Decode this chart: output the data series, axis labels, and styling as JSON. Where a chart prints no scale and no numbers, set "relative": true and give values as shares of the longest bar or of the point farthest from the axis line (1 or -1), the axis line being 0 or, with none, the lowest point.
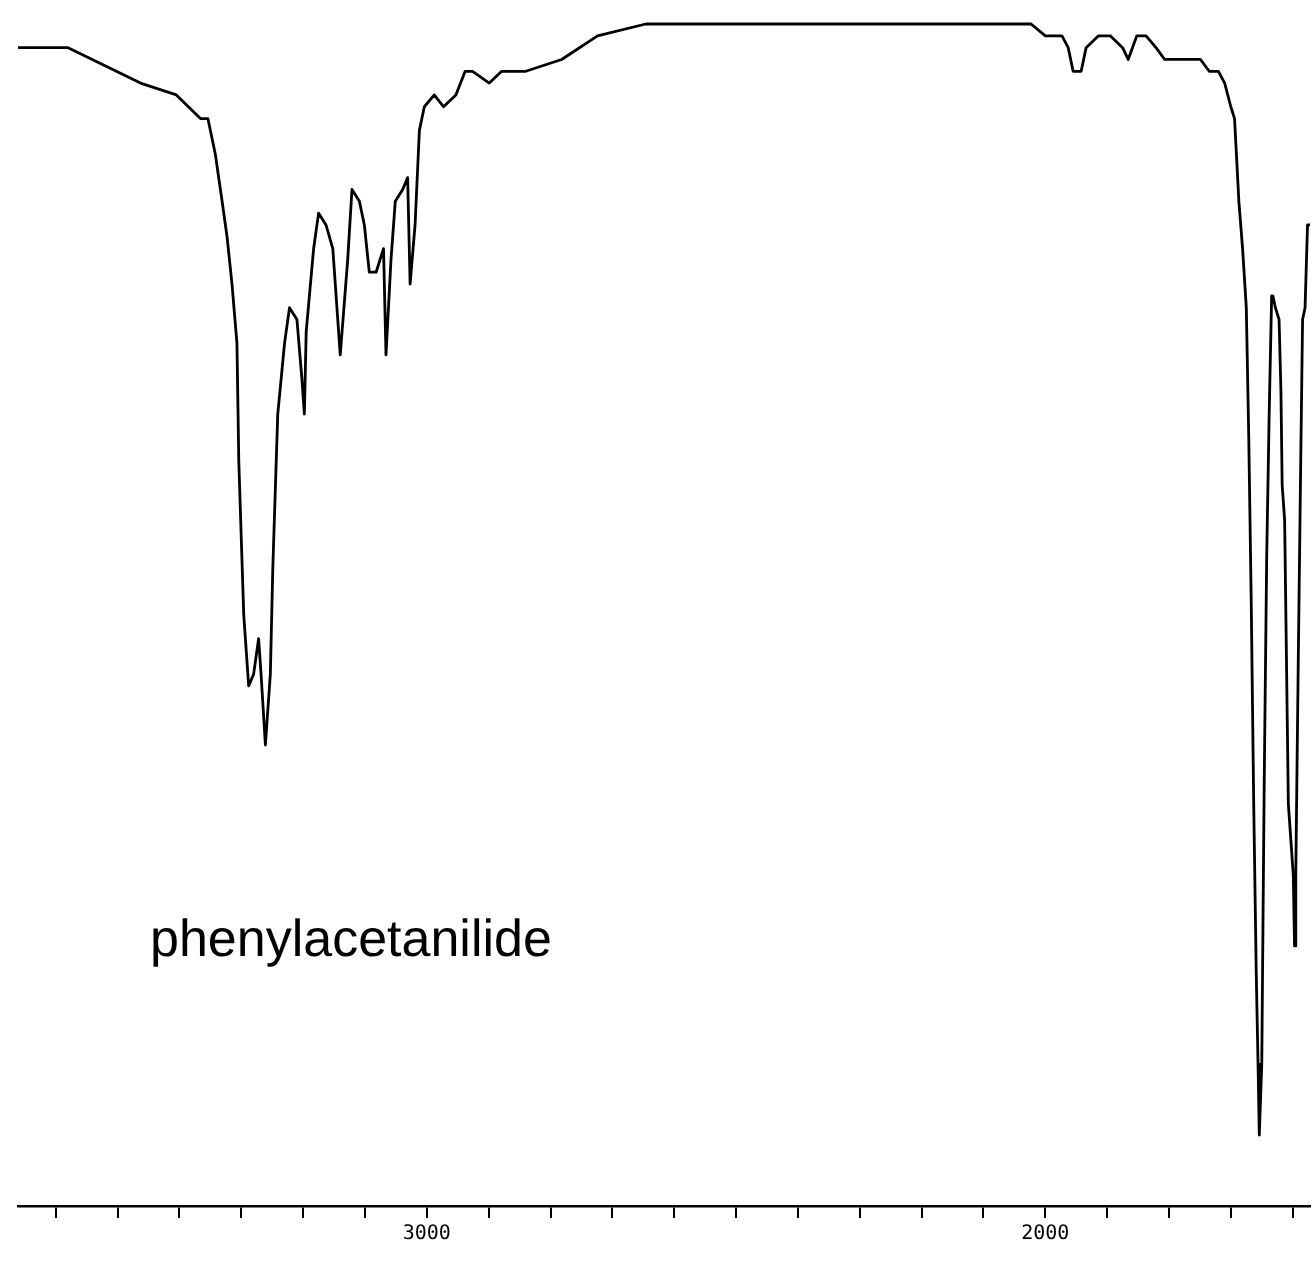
{
  "chart_data": {
    "type": "line",
    "relative": true,
    "marker": "none",
    "color": "#000000",
    "annotations": [
      "phenylacetanilide"
    ],
    "xlim": [
      3661,
      1572
    ],
    "xticks": [
      {
        "value": 3600,
        "label": null
      },
      {
        "value": 3500,
        "label": null
      },
      {
        "value": 3400,
        "label": null
      },
      {
        "value": 3300,
        "label": null
      },
      {
        "value": 3200,
        "label": null
      },
      {
        "value": 3100,
        "label": null
      },
      3000,
      {
        "value": 2900,
        "label": null
      },
      {
        "value": 2800,
        "label": null
      },
      {
        "value": 2700,
        "label": null
      },
      {
        "value": 2600,
        "label": null
      },
      {
        "value": 2500,
        "label": null
      },
      {
        "value": 2400,
        "label": null
      },
      {
        "value": 2300,
        "label": null
      },
      {
        "value": 2200,
        "label": null
      },
      {
        "value": 2100,
        "label": null
      },
      2000,
      {
        "value": 1900,
        "label": null
      },
      {
        "value": 1800,
        "label": null
      },
      {
        "value": 1700,
        "label": null
      },
      {
        "value": 1600,
        "label": null
      }
    ],
    "x": [
      3661,
      3638,
      3580,
      3541,
      3463,
      3405,
      3366,
      3354,
      3342,
      3331,
      3323,
      3315,
      3307,
      3304,
      3296,
      3288,
      3280,
      3272,
      3268,
      3261,
      3253,
      3249,
      3241,
      3230,
      3222,
      3210,
      3202,
      3198,
      3195,
      3183,
      3175,
      3163,
      3152,
      3144,
      3140,
      3128,
      3121,
      3109,
      3101,
      3093,
      3082,
      3070,
      3066,
      3058,
      3051,
      3039,
      3031,
      3027,
      3019,
      3012,
      3004,
      2988,
      2973,
      2953,
      2938,
      2926,
      2899,
      2879,
      2840,
      2782,
      2724,
      2646,
      2607,
      2529,
      2412,
      2249,
      2140,
      2023,
      2000,
      1973,
      1963,
      1955,
      1942,
      1934,
      1914,
      1895,
      1875,
      1866,
      1852,
      1837,
      1821,
      1807,
      1788,
      1749,
      1735,
      1720,
      1710,
      1700,
      1694,
      1691,
      1687,
      1681,
      1675,
      1671,
      1667,
      1663,
      1659,
      1656,
      1654,
      1650,
      1646,
      1642,
      1638,
      1634,
      1632,
      1628,
      1622,
      1619,
      1617,
      1613,
      1607,
      1599,
      1597,
      1595,
      1591,
      1587,
      1584,
      1580,
      1576,
      1572
    ],
    "values": [
      0.98,
      0.98,
      0.98,
      0.97,
      0.95,
      0.94,
      0.92,
      0.92,
      0.89,
      0.85,
      0.82,
      0.78,
      0.73,
      0.63,
      0.5,
      0.44,
      0.45,
      0.48,
      0.45,
      0.39,
      0.45,
      0.54,
      0.67,
      0.73,
      0.76,
      0.75,
      0.7,
      0.67,
      0.74,
      0.81,
      0.84,
      0.83,
      0.81,
      0.75,
      0.72,
      0.8,
      0.86,
      0.85,
      0.83,
      0.79,
      0.79,
      0.81,
      0.72,
      0.8,
      0.85,
      0.86,
      0.87,
      0.78,
      0.83,
      0.91,
      0.93,
      0.94,
      0.93,
      0.94,
      0.96,
      0.96,
      0.95,
      0.96,
      0.96,
      0.97,
      0.99,
      1.0,
      1.0,
      1.0,
      1.0,
      1.0,
      1.0,
      1.0,
      0.99,
      0.99,
      0.98,
      0.96,
      0.96,
      0.98,
      0.99,
      0.99,
      0.98,
      0.97,
      0.99,
      0.99,
      0.98,
      0.97,
      0.97,
      0.97,
      0.96,
      0.96,
      0.95,
      0.93,
      0.92,
      0.89,
      0.85,
      0.81,
      0.76,
      0.65,
      0.51,
      0.34,
      0.2,
      0.12,
      0.06,
      0.12,
      0.36,
      0.55,
      0.67,
      0.77,
      0.77,
      0.76,
      0.75,
      0.69,
      0.61,
      0.58,
      0.34,
      0.28,
      0.22,
      0.28,
      0.46,
      0.63,
      0.75,
      0.76,
      0.83,
      0.83
    ]
  }
}
